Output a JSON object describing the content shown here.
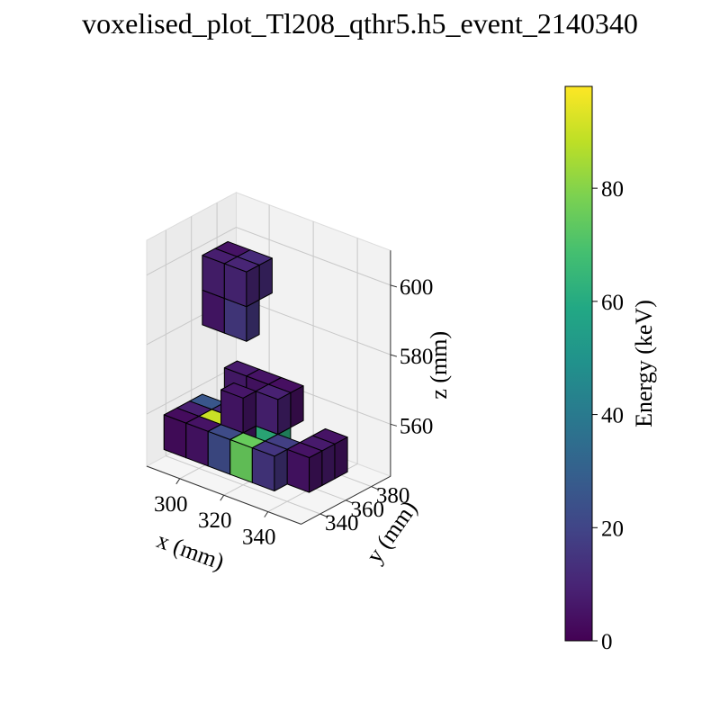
{
  "chart_data": {
    "type": "voxel3d",
    "title": "voxelised_plot_Tl208_qthr5.h5_event_2140340",
    "xlabel": "x (mm)",
    "ylabel": "y (mm)",
    "zlabel": "z (mm)",
    "xticks": [
      "300",
      "320",
      "340"
    ],
    "yticks": [
      "340",
      "360",
      "380"
    ],
    "zticks": [
      "560",
      "580",
      "600"
    ],
    "xlim": [
      285,
      355
    ],
    "ylim": [
      325,
      395
    ],
    "zlim": [
      545,
      610
    ],
    "grid": true,
    "voxel_size": 10,
    "colormap": "viridis",
    "colorbar": {
      "label": "Energy (keV)",
      "range": [
        0,
        98
      ],
      "ticks": [
        "0",
        "20",
        "40",
        "60",
        "80"
      ],
      "tick_values": [
        0,
        20,
        40,
        60,
        80
      ]
    },
    "voxels": [
      {
        "x": 290,
        "y": 330,
        "z": 550,
        "e": 3
      },
      {
        "x": 300,
        "y": 330,
        "z": 550,
        "e": 5
      },
      {
        "x": 310,
        "y": 330,
        "z": 550,
        "e": 22
      },
      {
        "x": 320,
        "y": 330,
        "z": 550,
        "e": 75
      },
      {
        "x": 330,
        "y": 330,
        "z": 550,
        "e": 15
      },
      {
        "x": 290,
        "y": 340,
        "z": 550,
        "e": 8
      },
      {
        "x": 300,
        "y": 340,
        "z": 550,
        "e": 90
      },
      {
        "x": 310,
        "y": 340,
        "z": 550,
        "e": 6
      },
      {
        "x": 330,
        "y": 340,
        "z": 550,
        "e": 18
      },
      {
        "x": 340,
        "y": 340,
        "z": 550,
        "e": 5
      },
      {
        "x": 290,
        "y": 350,
        "z": 550,
        "e": 26
      },
      {
        "x": 300,
        "y": 350,
        "z": 550,
        "e": 12
      },
      {
        "x": 310,
        "y": 350,
        "z": 550,
        "e": 8
      },
      {
        "x": 320,
        "y": 350,
        "z": 550,
        "e": 62
      },
      {
        "x": 340,
        "y": 350,
        "z": 550,
        "e": 7
      },
      {
        "x": 340,
        "y": 360,
        "z": 550,
        "e": 5
      },
      {
        "x": 310,
        "y": 340,
        "z": 560,
        "e": 6
      },
      {
        "x": 320,
        "y": 350,
        "z": 560,
        "e": 9
      },
      {
        "x": 300,
        "y": 360,
        "z": 560,
        "e": 7
      },
      {
        "x": 310,
        "y": 360,
        "z": 560,
        "e": 5
      },
      {
        "x": 320,
        "y": 360,
        "z": 560,
        "e": 4
      },
      {
        "x": 290,
        "y": 360,
        "z": 580,
        "e": 6
      },
      {
        "x": 300,
        "y": 360,
        "z": 580,
        "e": 16
      },
      {
        "x": 290,
        "y": 360,
        "z": 590,
        "e": 8
      },
      {
        "x": 300,
        "y": 360,
        "z": 590,
        "e": 10
      },
      {
        "x": 290,
        "y": 370,
        "z": 590,
        "e": 5
      },
      {
        "x": 300,
        "y": 370,
        "z": 590,
        "e": 12
      }
    ]
  }
}
